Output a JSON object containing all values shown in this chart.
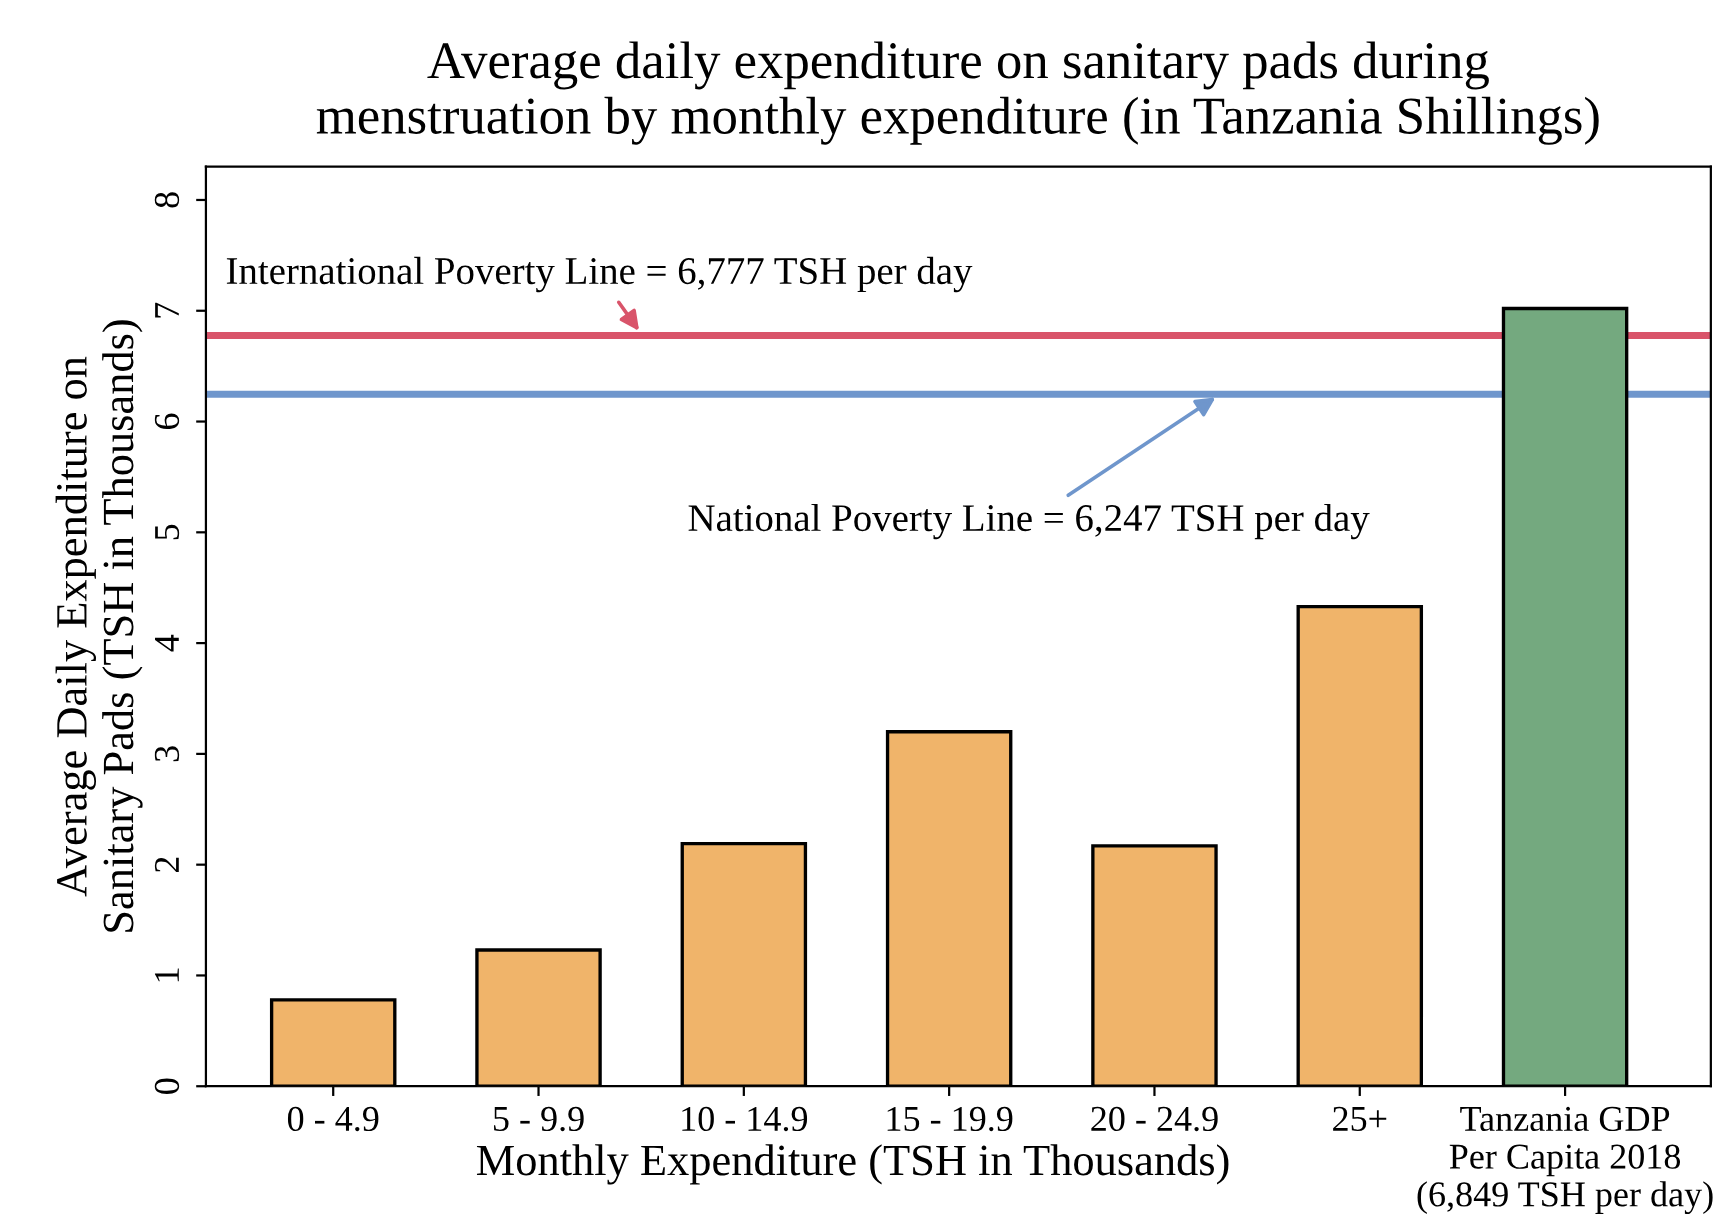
{
  "chart_data": {
    "type": "bar",
    "title": "Average daily expenditure on sanitary pads during\nmenstruation by monthly expenditure (in Tanzania Shillings)",
    "xlabel": "Monthly Expenditure (TSH in Thousands)",
    "ylabel": "Average Daily Expenditure on\nSanitary Pads (TSH in Thousands)",
    "categories": [
      "0 - 4.9",
      "5 - 9.9",
      "10 - 14.9",
      "15 - 19.9",
      "20 - 24.9",
      "25+",
      "Tanzania GDP\nPer Capita 2018\n(6,849 TSH per day)"
    ],
    "values": [
      0.78,
      1.23,
      2.19,
      3.2,
      2.17,
      4.33,
      7.02
    ],
    "colors": [
      "#f0b46a",
      "#f0b46a",
      "#f0b46a",
      "#f0b46a",
      "#f0b46a",
      "#f0b46a",
      "#74a97f"
    ],
    "ylim": [
      0,
      8.3
    ],
    "yticks": [
      0,
      1,
      2,
      3,
      4,
      5,
      6,
      7,
      8
    ],
    "ref_lines": [
      {
        "axis": "y",
        "value": 6.777,
        "label": "International Poverty Line = 6,777 TSH per day",
        "color": "#d9546a"
      },
      {
        "axis": "y",
        "value": 6.247,
        "label": "National Poverty Line = 6,247 TSH per day",
        "color": "#6f96cc"
      }
    ],
    "grid": false,
    "legend": false
  }
}
